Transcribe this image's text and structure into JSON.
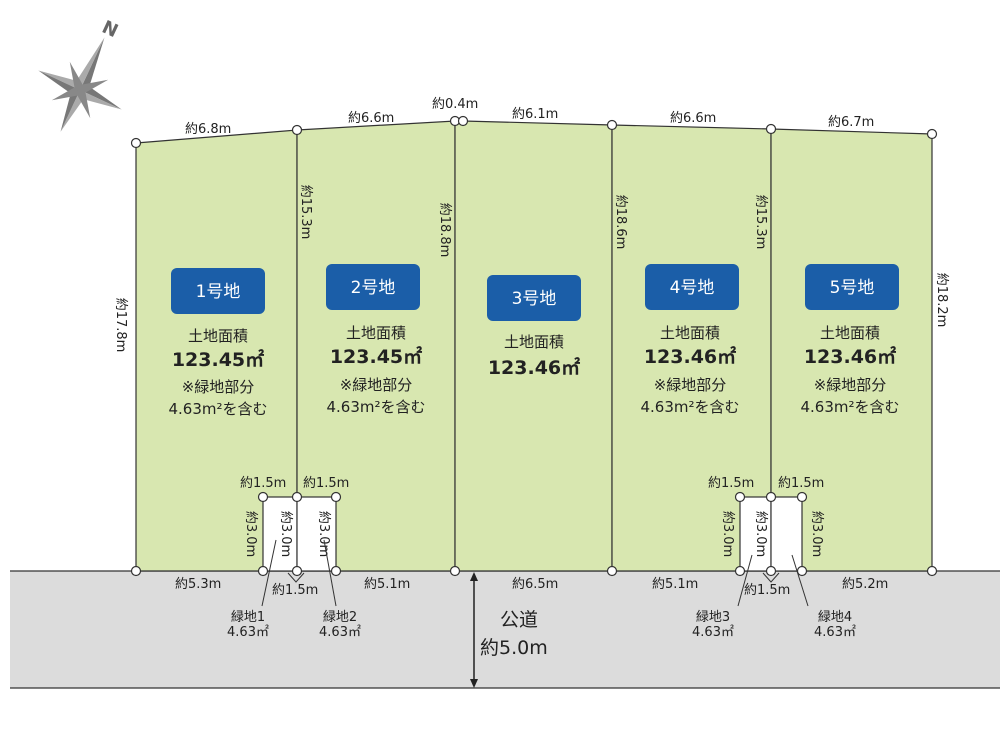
{
  "compass": {
    "label": "N",
    "icon": "compass-rose-icon"
  },
  "colors": {
    "lot": "#d8e7b0",
    "road": "#dcdcdc",
    "badge": "#1b5ea8",
    "line": "#333333"
  },
  "lots": [
    {
      "name": "1号地",
      "area_label": "土地面積",
      "area": "123.45㎡",
      "note1": "※緑地部分",
      "note2": "4.63m²を含む"
    },
    {
      "name": "2号地",
      "area_label": "土地面積",
      "area": "123.45㎡",
      "note1": "※緑地部分",
      "note2": "4.63m²を含む"
    },
    {
      "name": "3号地",
      "area_label": "土地面積",
      "area": "123.46㎡"
    },
    {
      "name": "4号地",
      "area_label": "土地面積",
      "area": "123.46㎡",
      "note1": "※緑地部分",
      "note2": "4.63m²を含む"
    },
    {
      "name": "5号地",
      "area_label": "土地面積",
      "area": "123.46㎡",
      "note1": "※緑地部分",
      "note2": "4.63m²を含む"
    }
  ],
  "top_dims": [
    "約6.8m",
    "約6.6m",
    "約0.4m",
    "約6.1m",
    "約6.6m",
    "約6.7m"
  ],
  "side_dims": [
    "約17.8m",
    "約15.3m",
    "約18.8m",
    "約18.6m",
    "約15.3m",
    "約18.2m"
  ],
  "bottom_dims": [
    "約5.3m",
    "約5.1m",
    "約6.5m",
    "約5.1m",
    "約5.2m"
  ],
  "green_dims": {
    "width": "約1.5m",
    "depth": "約3.0m"
  },
  "green_areas": [
    {
      "name": "緑地1",
      "area": "4.63㎡"
    },
    {
      "name": "緑地2",
      "area": "4.63㎡"
    },
    {
      "name": "緑地3",
      "area": "4.63㎡"
    },
    {
      "name": "緑地4",
      "area": "4.63㎡"
    }
  ],
  "road": {
    "label": "公道",
    "width": "約5.0m"
  }
}
